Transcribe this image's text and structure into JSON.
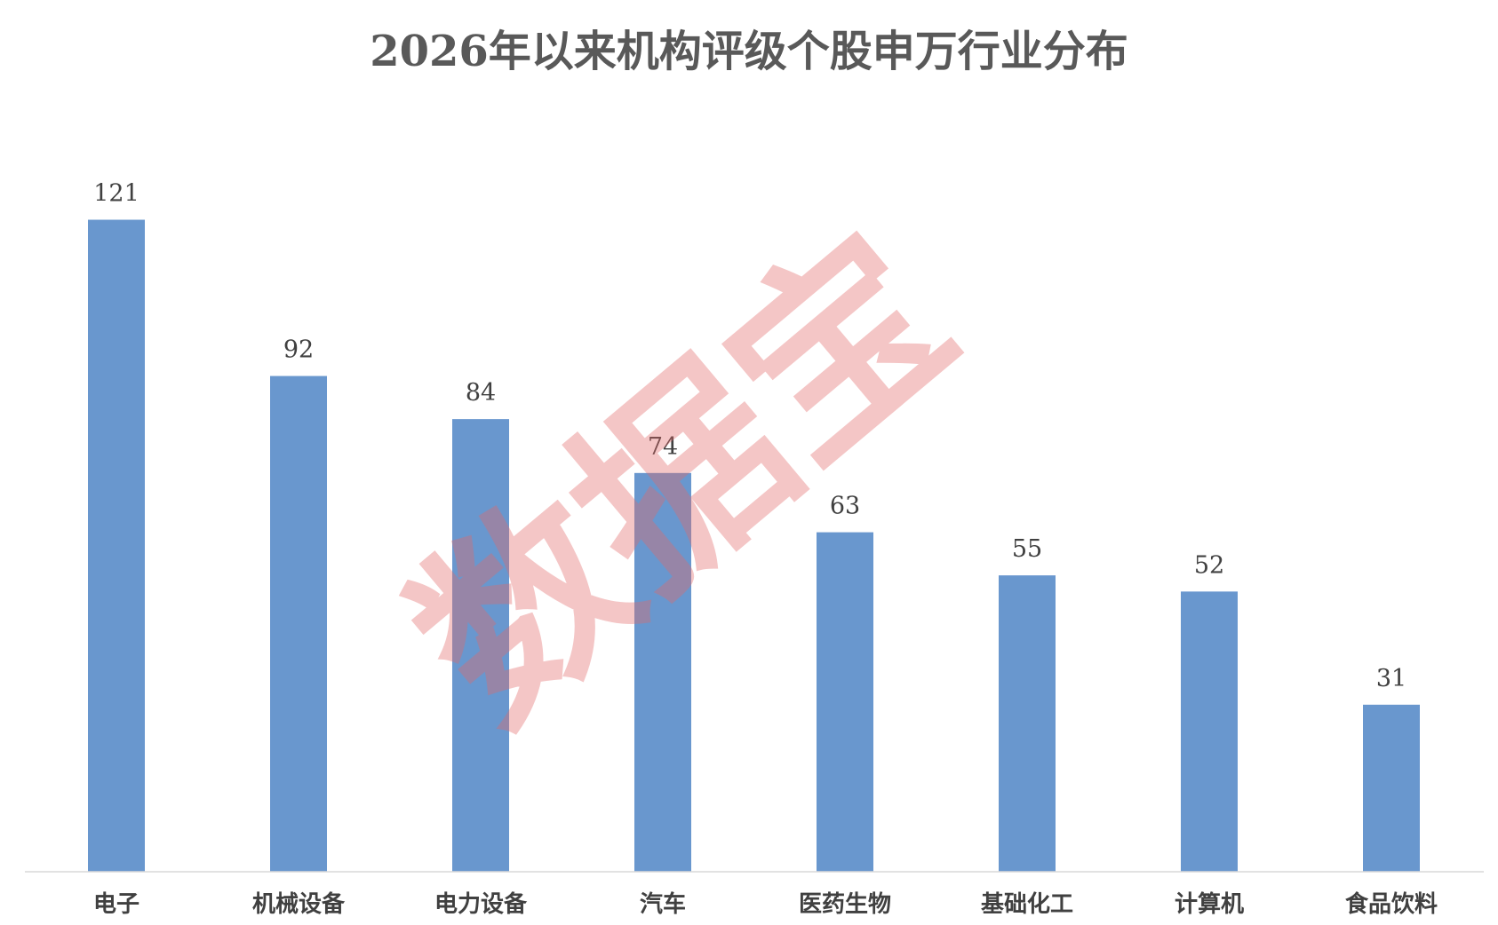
{
  "colors": {
    "bar": "#6997CE",
    "axis": "#D9D9D9",
    "watermark": "#E26A6A"
  },
  "watermark": {
    "text": "数据宝"
  },
  "chart_data": {
    "type": "bar",
    "title": "2026年以来机构评级个股申万行业分布",
    "xlabel": "",
    "ylabel": "",
    "categories": [
      "电子",
      "机械设备",
      "电力设备",
      "汽车",
      "医药生物",
      "基础化工",
      "计算机",
      "食品饮料"
    ],
    "values": [
      121,
      92,
      84,
      74,
      63,
      55,
      52,
      31
    ],
    "ylim": [
      0,
      130
    ],
    "data_labels": true,
    "grid": false,
    "legend": "none"
  }
}
